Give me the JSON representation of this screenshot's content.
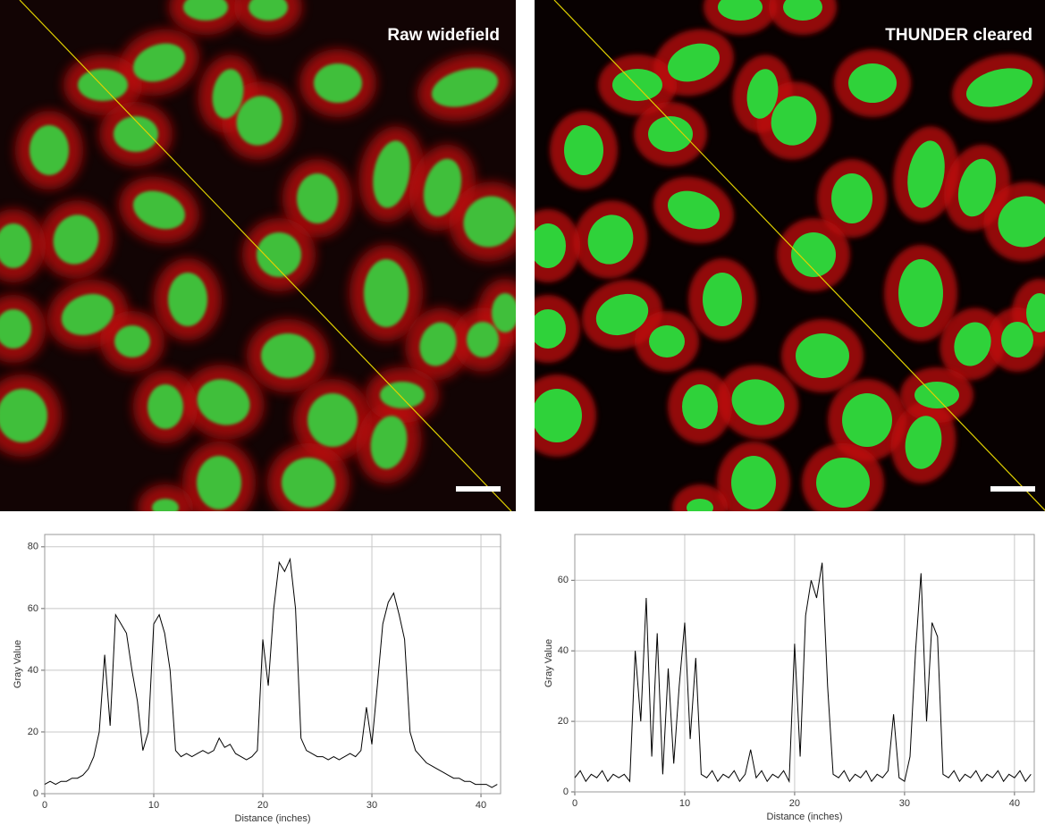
{
  "chart_data": [
    {
      "type": "line",
      "title": "Raw widefield",
      "x_label": "Distance (inches)",
      "y_label": "Gray Value",
      "color": "#000000",
      "grid": true,
      "xlim": [
        0,
        41.8
      ],
      "ylim": [
        0,
        84
      ],
      "xticks": [
        0,
        10,
        20,
        30,
        40
      ],
      "yticks": [
        0,
        20,
        40,
        60,
        80
      ],
      "x": [
        0,
        0.5,
        1,
        1.5,
        2,
        2.5,
        3,
        3.5,
        4,
        4.5,
        5,
        5.5,
        6,
        6.5,
        7,
        7.5,
        8,
        8.5,
        9,
        9.5,
        10,
        10.5,
        11,
        11.5,
        12,
        12.5,
        13,
        13.5,
        14,
        14.5,
        15,
        15.5,
        16,
        16.5,
        17,
        17.5,
        18,
        18.5,
        19,
        19.5,
        20,
        20.5,
        21,
        21.5,
        22,
        22.5,
        23,
        23.5,
        24,
        24.5,
        25,
        25.5,
        26,
        26.5,
        27,
        27.5,
        28,
        28.5,
        29,
        29.5,
        30,
        30.5,
        31,
        31.5,
        32,
        32.5,
        33,
        33.5,
        34,
        34.5,
        35,
        35.5,
        36,
        36.5,
        37,
        37.5,
        38,
        38.5,
        39,
        39.5,
        40,
        40.5,
        41,
        41.5
      ],
      "values": [
        3,
        4,
        3,
        4,
        4,
        5,
        5,
        6,
        8,
        12,
        20,
        45,
        22,
        58,
        55,
        52,
        40,
        30,
        14,
        20,
        55,
        58,
        52,
        40,
        14,
        12,
        13,
        12,
        13,
        14,
        13,
        14,
        18,
        15,
        16,
        13,
        12,
        11,
        12,
        14,
        50,
        35,
        60,
        75,
        72,
        76,
        60,
        18,
        14,
        13,
        12,
        12,
        11,
        12,
        11,
        12,
        13,
        12,
        14,
        28,
        16,
        35,
        55,
        62,
        65,
        58,
        50,
        20,
        14,
        12,
        10,
        9,
        8,
        7,
        6,
        5,
        5,
        4,
        4,
        3,
        3,
        3,
        2,
        3
      ]
    },
    {
      "type": "line",
      "title": "THUNDER cleared",
      "x_label": "Distance (inches)",
      "y_label": "Gray Value",
      "color": "#000000",
      "grid": true,
      "xlim": [
        0,
        41.8
      ],
      "ylim": [
        0,
        73
      ],
      "xticks": [
        0,
        10,
        20,
        30,
        40
      ],
      "yticks": [
        0,
        20,
        40,
        60
      ],
      "x": [
        0,
        0.5,
        1,
        1.5,
        2,
        2.5,
        3,
        3.5,
        4,
        4.5,
        5,
        5.5,
        6,
        6.5,
        7,
        7.5,
        8,
        8.5,
        9,
        9.5,
        10,
        10.5,
        11,
        11.5,
        12,
        12.5,
        13,
        13.5,
        14,
        14.5,
        15,
        15.5,
        16,
        16.5,
        17,
        17.5,
        18,
        18.5,
        19,
        19.5,
        20,
        20.5,
        21,
        21.5,
        22,
        22.5,
        23,
        23.5,
        24,
        24.5,
        25,
        25.5,
        26,
        26.5,
        27,
        27.5,
        28,
        28.5,
        29,
        29.5,
        30,
        30.5,
        31,
        31.5,
        32,
        32.5,
        33,
        33.5,
        34,
        34.5,
        35,
        35.5,
        36,
        36.5,
        37,
        37.5,
        38,
        38.5,
        39,
        39.5,
        40,
        40.5,
        41,
        41.5
      ],
      "values": [
        4,
        6,
        3,
        5,
        4,
        6,
        3,
        5,
        4,
        5,
        3,
        40,
        20,
        55,
        10,
        45,
        5,
        35,
        8,
        30,
        48,
        15,
        38,
        5,
        4,
        6,
        3,
        5,
        4,
        6,
        3,
        5,
        12,
        4,
        6,
        3,
        5,
        4,
        6,
        3,
        42,
        10,
        50,
        60,
        55,
        65,
        30,
        5,
        4,
        6,
        3,
        5,
        4,
        6,
        3,
        5,
        4,
        6,
        22,
        4,
        3,
        10,
        40,
        62,
        20,
        48,
        44,
        5,
        4,
        6,
        3,
        5,
        4,
        6,
        3,
        5,
        4,
        6,
        3,
        5,
        4,
        6,
        3,
        5
      ]
    }
  ]
}
